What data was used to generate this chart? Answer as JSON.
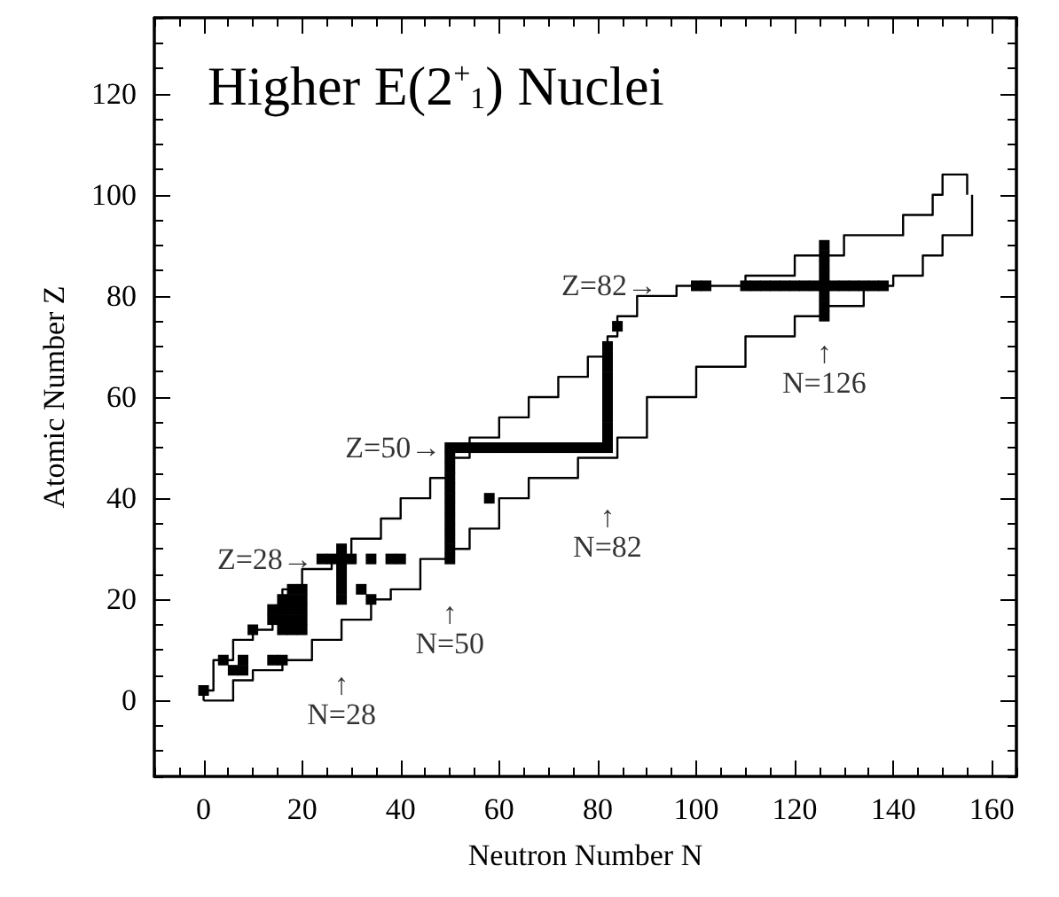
{
  "chart_data": {
    "type": "scatter",
    "title": "Higher E(2$^{+}$$_{1}$) Nuclei",
    "xlabel": "Neutron Number N",
    "ylabel": "Atomic Number Z",
    "xlim": [
      -10,
      165
    ],
    "ylim": [
      -15,
      135
    ],
    "xticks": [
      0,
      20,
      40,
      60,
      80,
      100,
      120,
      140,
      160
    ],
    "yticks": [
      0,
      20,
      40,
      60,
      80,
      100,
      120
    ],
    "grid": false,
    "series": [
      {
        "type": "step",
        "color": "#000000",
        "marker": "none",
        "x": [
          0,
          0,
          2,
          6,
          10,
          14,
          16,
          20,
          26,
          30,
          36,
          40,
          46,
          50,
          54,
          60,
          66,
          72,
          78,
          82,
          84,
          88,
          96,
          110,
          120,
          130,
          142,
          148,
          150,
          155,
          155
        ],
        "values": [
          0,
          2,
          8,
          12,
          14,
          18,
          22,
          26,
          28,
          32,
          36,
          40,
          44,
          48,
          52,
          56,
          60,
          64,
          68,
          72,
          76,
          80,
          82,
          84,
          88,
          92,
          96,
          100,
          104,
          104,
          100
        ]
      },
      {
        "type": "step",
        "color": "#000000",
        "marker": "none",
        "x": [
          0,
          2,
          6,
          10,
          16,
          22,
          28,
          34,
          38,
          44,
          50,
          54,
          60,
          66,
          76,
          84,
          90,
          100,
          110,
          120,
          126,
          134,
          140,
          146,
          150,
          156,
          156
        ],
        "values": [
          0,
          0,
          4,
          6,
          8,
          12,
          16,
          20,
          22,
          28,
          30,
          34,
          40,
          44,
          48,
          52,
          60,
          66,
          72,
          76,
          78,
          82,
          84,
          88,
          92,
          96,
          100
        ]
      },
      {
        "color": "#000000",
        "marker": "square",
        "x": [
          50,
          50,
          50,
          50,
          50,
          50,
          50,
          50,
          50,
          50,
          50,
          50,
          52,
          54,
          56,
          58,
          60,
          62,
          64,
          66,
          68,
          70,
          72,
          74,
          76,
          78,
          80,
          82,
          82,
          82,
          82,
          82,
          82,
          82,
          82,
          82,
          82,
          82,
          84,
          126,
          126,
          126,
          126,
          126,
          126,
          126,
          126,
          110,
          112,
          114,
          116,
          118,
          120,
          122,
          124,
          128,
          130,
          132,
          134,
          136,
          138,
          24,
          26,
          28,
          30,
          34,
          38,
          40,
          28,
          28,
          28,
          28,
          28,
          0,
          4,
          6,
          8,
          8,
          14,
          16,
          10,
          14,
          14,
          16,
          16,
          16,
          16,
          18,
          18,
          18,
          18,
          18,
          20,
          20,
          20,
          20,
          20,
          32,
          34,
          58,
          100,
          102
        ],
        "values": [
          28,
          30,
          32,
          34,
          36,
          38,
          40,
          42,
          44,
          46,
          48,
          50,
          50,
          50,
          50,
          50,
          50,
          50,
          50,
          50,
          50,
          50,
          50,
          50,
          50,
          50,
          50,
          50,
          52,
          54,
          56,
          58,
          60,
          62,
          64,
          66,
          68,
          70,
          74,
          76,
          78,
          80,
          82,
          84,
          86,
          88,
          90,
          82,
          82,
          82,
          82,
          82,
          82,
          82,
          82,
          82,
          82,
          82,
          82,
          82,
          82,
          28,
          28,
          28,
          28,
          28,
          28,
          28,
          20,
          22,
          24,
          26,
          30,
          2,
          8,
          6,
          6,
          8,
          8,
          8,
          14,
          16,
          18,
          14,
          16,
          18,
          20,
          14,
          16,
          18,
          20,
          22,
          14,
          16,
          18,
          20,
          22,
          22,
          20,
          40,
          82,
          82
        ]
      }
    ],
    "annotations": [
      {
        "text": "Z=28→",
        "x": 24,
        "y": 28
      },
      {
        "text": "Z=50→",
        "x": 50,
        "y": 50
      },
      {
        "text": "Z=82→",
        "x": 100,
        "y": 82
      },
      {
        "text": "↑\nN=28",
        "x": 28,
        "y": 16
      },
      {
        "text": "↑\nN=50",
        "x": 50,
        "y": 30
      },
      {
        "text": "↑\nN=82",
        "x": 82,
        "y": 52
      },
      {
        "text": "↑\nN=126",
        "x": 126,
        "y": 76
      }
    ]
  }
}
